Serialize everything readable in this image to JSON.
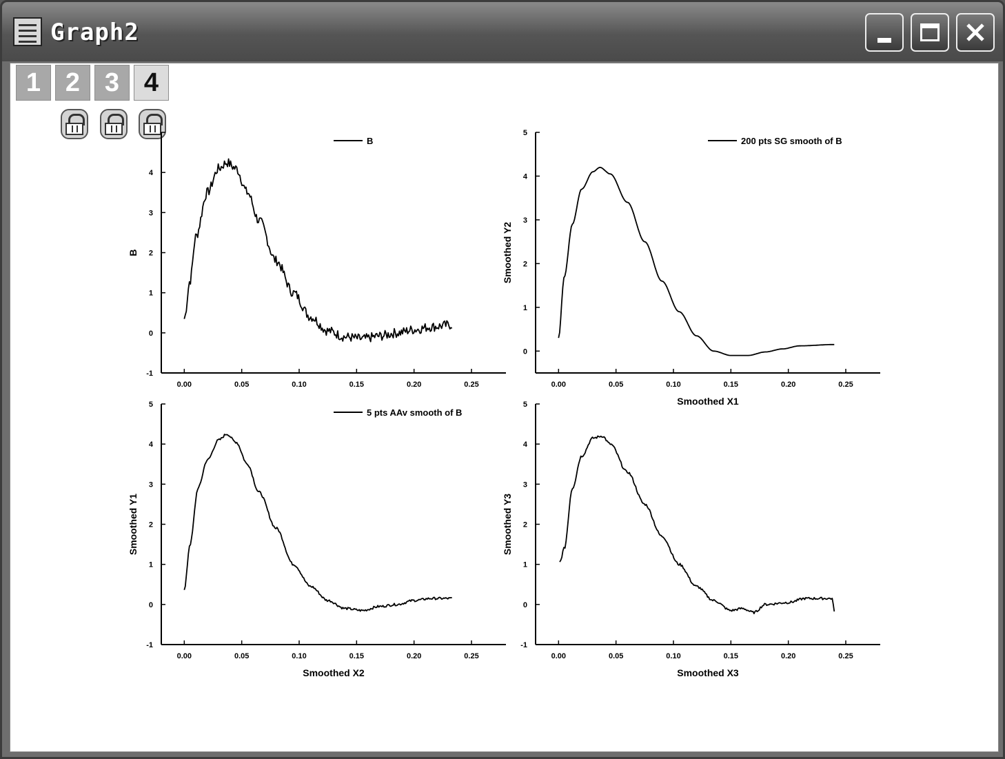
{
  "window": {
    "title": "Graph2",
    "controls": {
      "minimize": "minimize",
      "maximize": "maximize",
      "close": "close"
    }
  },
  "layer_tabs": [
    {
      "label": "1",
      "active": false
    },
    {
      "label": "2",
      "active": false
    },
    {
      "label": "3",
      "active": false
    },
    {
      "label": "4",
      "active": true
    }
  ],
  "locks": [
    "lock-icon",
    "lock-icon",
    "lock-icon"
  ],
  "colors": {
    "title_text": "#ffffff",
    "plot_line": "#000000",
    "tab_inactive": "#a8a8a8",
    "tab_active": "#dcdcdc"
  },
  "chart_data": [
    {
      "type": "line",
      "title": "",
      "xlabel": "",
      "ylabel": "B",
      "xlim": [
        -0.02,
        0.28
      ],
      "ylim": [
        -1,
        5
      ],
      "xticks": [
        "0.00",
        "0.05",
        "0.10",
        "0.15",
        "0.20",
        "0.25"
      ],
      "xtick_values": [
        0.0,
        0.05,
        0.1,
        0.15,
        0.2,
        0.25
      ],
      "yticks": [
        "-1",
        "0",
        "1",
        "2",
        "3",
        "4",
        ""
      ],
      "ytick_values": [
        -1,
        0,
        1,
        2,
        3,
        4,
        5
      ],
      "legend": "B",
      "noise": 0.12,
      "series": [
        {
          "name": "B",
          "x": [
            0.0,
            0.005,
            0.01,
            0.02,
            0.03,
            0.037,
            0.045,
            0.055,
            0.065,
            0.08,
            0.095,
            0.11,
            0.125,
            0.14,
            0.155,
            0.17,
            0.185,
            0.2,
            0.215,
            0.233
          ],
          "y": [
            0.35,
            1.3,
            2.4,
            3.5,
            4.1,
            4.25,
            4.1,
            3.5,
            2.8,
            1.8,
            1.0,
            0.4,
            0.05,
            -0.1,
            -0.15,
            -0.08,
            0.0,
            0.08,
            0.15,
            0.2
          ]
        }
      ]
    },
    {
      "type": "line",
      "title": "",
      "xlabel": "Smoothed X1",
      "ylabel": "Smoothed Y2",
      "xlim": [
        -0.02,
        0.28
      ],
      "ylim": [
        -0.5,
        5
      ],
      "xticks": [
        "0.00",
        "0.05",
        "0.10",
        "0.15",
        "0.20",
        "0.25"
      ],
      "xtick_values": [
        0.0,
        0.05,
        0.1,
        0.15,
        0.2,
        0.25
      ],
      "yticks": [
        "0",
        "1",
        "2",
        "3",
        "4",
        "5"
      ],
      "ytick_values": [
        0,
        1,
        2,
        3,
        4,
        5
      ],
      "legend": "200 pts SG smooth of B",
      "noise": 0,
      "series": [
        {
          "name": "200 pts SG smooth of B",
          "x": [
            0.0,
            0.005,
            0.012,
            0.02,
            0.03,
            0.036,
            0.045,
            0.06,
            0.075,
            0.09,
            0.105,
            0.12,
            0.135,
            0.15,
            0.165,
            0.18,
            0.195,
            0.21,
            0.24
          ],
          "y": [
            0.3,
            1.7,
            2.9,
            3.7,
            4.1,
            4.2,
            4.05,
            3.4,
            2.5,
            1.6,
            0.9,
            0.35,
            0.0,
            -0.1,
            -0.1,
            -0.02,
            0.05,
            0.12,
            0.15
          ]
        }
      ]
    },
    {
      "type": "line",
      "title": "",
      "xlabel": "Smoothed X2",
      "ylabel": "Smoothed Y1",
      "xlim": [
        -0.02,
        0.28
      ],
      "ylim": [
        -1,
        5
      ],
      "xticks": [
        "0.00",
        "0.05",
        "0.10",
        "0.15",
        "0.20",
        "0.25"
      ],
      "xtick_values": [
        0.0,
        0.05,
        0.1,
        0.15,
        0.2,
        0.25
      ],
      "yticks": [
        "-1",
        "0",
        "1",
        "2",
        "3",
        "4",
        "5"
      ],
      "ytick_values": [
        -1,
        0,
        1,
        2,
        3,
        4,
        5
      ],
      "legend": "5 pts AAv smooth of B",
      "noise": 0.03,
      "series": [
        {
          "name": "5 pts AAv smooth of B",
          "x": [
            0.0,
            0.005,
            0.012,
            0.02,
            0.03,
            0.037,
            0.045,
            0.055,
            0.065,
            0.08,
            0.095,
            0.11,
            0.125,
            0.14,
            0.155,
            0.17,
            0.185,
            0.2,
            0.215,
            0.233
          ],
          "y": [
            0.35,
            1.5,
            2.9,
            3.6,
            4.1,
            4.25,
            4.05,
            3.5,
            2.8,
            1.9,
            1.0,
            0.45,
            0.1,
            -0.1,
            -0.15,
            -0.05,
            0.0,
            0.1,
            0.15,
            0.15
          ]
        }
      ]
    },
    {
      "type": "line",
      "title": "",
      "xlabel": "Smoothed X3",
      "ylabel": "Smoothed Y3",
      "xlim": [
        -0.02,
        0.28
      ],
      "ylim": [
        -1,
        5
      ],
      "xticks": [
        "0.00",
        "0.05",
        "0.10",
        "0.15",
        "0.20",
        "0.25"
      ],
      "xtick_values": [
        0.0,
        0.05,
        0.1,
        0.15,
        0.2,
        0.25
      ],
      "yticks": [
        "-1",
        "0",
        "1",
        "2",
        "3",
        "4",
        "5"
      ],
      "ytick_values": [
        -1,
        0,
        1,
        2,
        3,
        4,
        5
      ],
      "legend": "",
      "noise": 0.03,
      "series": [
        {
          "name": "",
          "x": [
            0.001,
            0.005,
            0.012,
            0.02,
            0.03,
            0.038,
            0.045,
            0.06,
            0.075,
            0.09,
            0.105,
            0.12,
            0.135,
            0.15,
            0.16,
            0.17,
            0.18,
            0.2,
            0.215,
            0.238,
            0.24
          ],
          "y": [
            1.05,
            1.4,
            2.9,
            3.7,
            4.15,
            4.2,
            4.0,
            3.3,
            2.5,
            1.7,
            1.0,
            0.45,
            0.1,
            -0.15,
            -0.1,
            -0.2,
            0.0,
            0.05,
            0.15,
            0.15,
            -0.15
          ]
        }
      ]
    }
  ]
}
